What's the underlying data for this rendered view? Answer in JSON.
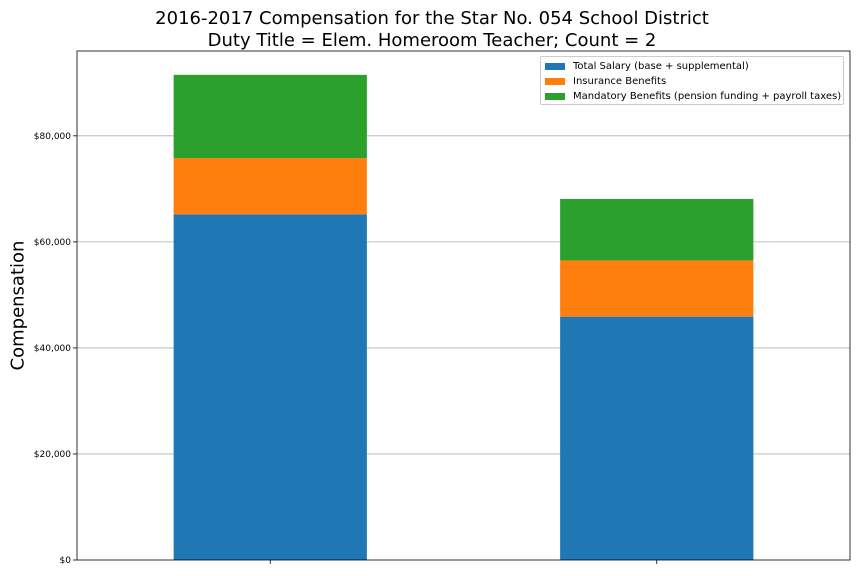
{
  "chart_data": {
    "type": "bar",
    "stacked": true,
    "title": "2016-2017 Compensation for the Star No. 054 School District",
    "subtitle": "Duty Title = Elem. Homeroom Teacher; Count = 2",
    "xlabel": "",
    "ylabel": "Compensation",
    "ylim": [
      0,
      96000
    ],
    "yticks": [
      "$0",
      "$20,000",
      "$40,000",
      "$60,000",
      "$80,000"
    ],
    "ytick_values": [
      0,
      20000,
      40000,
      60000,
      80000
    ],
    "categories": [
      "",
      ""
    ],
    "grid": "horizontal",
    "legend_position": "top-right",
    "series": [
      {
        "name": "Total Salary (base + supplemental)",
        "color": "#1f77b4",
        "values": [
          65200,
          45900
        ]
      },
      {
        "name": "Insurance Benefits",
        "color": "#ff7f0e",
        "values": [
          10600,
          10600
        ]
      },
      {
        "name": "Mandatory Benefits (pension funding + payroll taxes)",
        "color": "#2ca02c",
        "values": [
          15700,
          11600
        ]
      }
    ]
  }
}
